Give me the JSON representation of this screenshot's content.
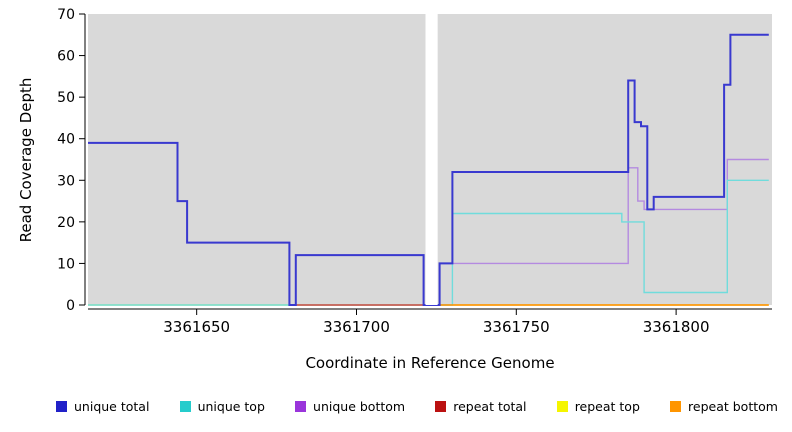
{
  "chart_data": {
    "type": "line",
    "style": "step",
    "title": "",
    "xlabel": "Coordinate in Reference Genome",
    "ylabel": "Read Coverage Depth",
    "xlim": [
      3361616,
      3361830
    ],
    "ylim": [
      0,
      70
    ],
    "xticks": [
      3361650,
      3361700,
      3361750,
      3361800
    ],
    "yticks": [
      0,
      10,
      20,
      30,
      40,
      50,
      60,
      70
    ],
    "plot_background": "#d9d9d9",
    "grid": false,
    "legend_position": "bottom",
    "gap_region": {
      "x_start": 3361721.6,
      "x_end": 3361725.4,
      "color": "#ffffff"
    },
    "draw_order": [
      4,
      2,
      1,
      3,
      5,
      0
    ],
    "series": [
      {
        "label": "unique total",
        "color": "#3939cf",
        "swatch_color": "#2121c8",
        "line_width": 2,
        "points": [
          [
            3361616,
            39
          ],
          [
            3361644,
            39
          ],
          [
            3361644,
            25
          ],
          [
            3361647,
            25
          ],
          [
            3361647,
            15
          ],
          [
            3361679,
            15
          ],
          [
            3361679,
            0
          ],
          [
            3361681,
            0
          ],
          [
            3361681,
            12
          ],
          [
            3361721,
            12
          ],
          [
            3361721,
            0
          ],
          [
            3361726,
            0
          ],
          [
            3361726,
            10
          ],
          [
            3361730,
            10
          ],
          [
            3361730,
            32
          ],
          [
            3361785,
            32
          ],
          [
            3361785,
            54
          ],
          [
            3361787,
            54
          ],
          [
            3361787,
            44
          ],
          [
            3361789,
            44
          ],
          [
            3361789,
            43
          ],
          [
            3361791,
            43
          ],
          [
            3361791,
            23
          ],
          [
            3361793,
            23
          ],
          [
            3361793,
            26
          ],
          [
            3361815,
            26
          ],
          [
            3361815,
            53
          ],
          [
            3361817,
            53
          ],
          [
            3361817,
            65
          ],
          [
            3361829,
            65
          ]
        ]
      },
      {
        "label": "unique top",
        "color": "#70dcdc",
        "swatch_color": "#25cccc",
        "line_width": 1.4,
        "points": [
          [
            3361616,
            0
          ],
          [
            3361730,
            0
          ],
          [
            3361730,
            22
          ],
          [
            3361783,
            22
          ],
          [
            3361783,
            20
          ],
          [
            3361790,
            20
          ],
          [
            3361790,
            3
          ],
          [
            3361816,
            3
          ],
          [
            3361816,
            30
          ],
          [
            3361829,
            30
          ]
        ]
      },
      {
        "label": "unique bottom",
        "color": "#b48ae0",
        "swatch_color": "#9a35db",
        "line_width": 1.4,
        "points": [
          [
            3361616,
            39
          ],
          [
            3361644,
            39
          ],
          [
            3361644,
            25
          ],
          [
            3361647,
            25
          ],
          [
            3361647,
            15
          ],
          [
            3361679,
            15
          ],
          [
            3361679,
            0
          ],
          [
            3361681,
            0
          ],
          [
            3361681,
            12
          ],
          [
            3361721,
            12
          ],
          [
            3361721,
            0
          ],
          [
            3361726,
            0
          ],
          [
            3361726,
            10
          ],
          [
            3361785,
            10
          ],
          [
            3361785,
            33
          ],
          [
            3361788,
            33
          ],
          [
            3361788,
            25
          ],
          [
            3361790,
            25
          ],
          [
            3361790,
            23
          ],
          [
            3361816,
            23
          ],
          [
            3361816,
            35
          ],
          [
            3361829,
            35
          ]
        ]
      },
      {
        "label": "repeat total",
        "color": "#d04848",
        "swatch_color": "#bb1111",
        "line_width": 1.4,
        "points": [
          [
            3361681,
            0
          ],
          [
            3361721,
            0
          ]
        ]
      },
      {
        "label": "repeat top",
        "color": "#efef55",
        "swatch_color": "#f5f500",
        "line_width": 1.4,
        "points": [
          [
            3361616,
            0
          ],
          [
            3361829,
            0
          ]
        ]
      },
      {
        "label": "repeat bottom",
        "color": "#ff8c00",
        "swatch_color": "#ff9500",
        "line_width": 1.6,
        "points": [
          [
            3361726,
            0
          ],
          [
            3361829,
            0
          ]
        ]
      }
    ]
  }
}
